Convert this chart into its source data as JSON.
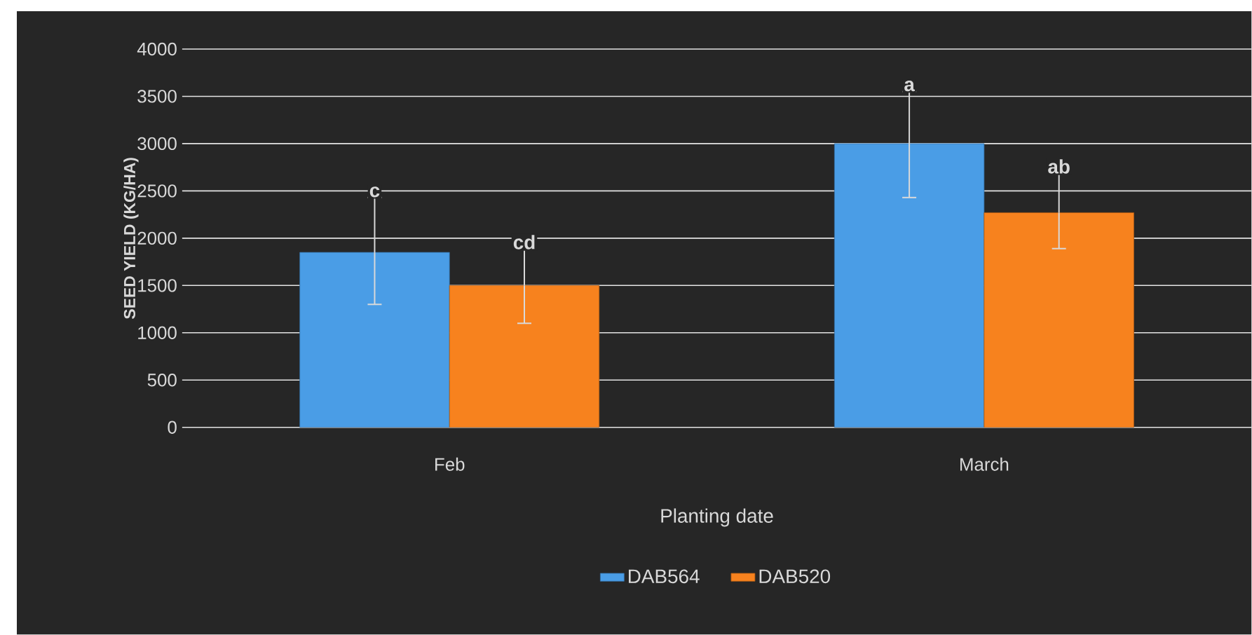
{
  "chart_data": {
    "type": "bar",
    "xlabel": "Planting date",
    "ylabel": "SEED YIELD (KG/HA)",
    "categories": [
      "Feb",
      "March"
    ],
    "series": [
      {
        "name": "DAB564",
        "color": "#4a9de6",
        "values": [
          1850,
          3000
        ],
        "errors": [
          [
            1300,
            2430
          ],
          [
            2430,
            3550
          ]
        ],
        "value_labels": [
          "c",
          "a"
        ]
      },
      {
        "name": "DAB520",
        "color": "#f7821e",
        "values": [
          1500,
          2270
        ],
        "errors": [
          [
            1100,
            1880
          ],
          [
            1890,
            2680
          ]
        ],
        "value_labels": [
          "cd",
          "ab"
        ]
      }
    ],
    "ylim": [
      0,
      4000
    ],
    "yticks": [
      0,
      500,
      1000,
      1500,
      2000,
      2500,
      3000,
      3500,
      4000
    ],
    "grid": "y",
    "legend": "bottom"
  }
}
